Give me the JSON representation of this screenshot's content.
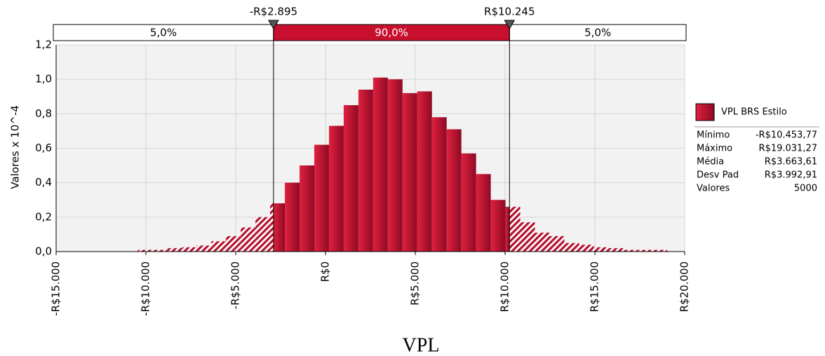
{
  "chart_data": {
    "type": "histogram",
    "xlabel": "VPL",
    "ylabel": "Valores x 10^-4",
    "bins": [
      -10453.77,
      -9634.74,
      -8815.71,
      -7996.68,
      -7177.65,
      -6358.63,
      -5539.6,
      -4720.57,
      -3901.54,
      -3082.51,
      -2263.48,
      -1444.45,
      -625.42,
      193.61,
      1012.63,
      1831.66,
      2650.69,
      3469.72,
      4288.75,
      5107.78,
      5926.81,
      6745.84,
      7564.87,
      8383.9,
      9202.92,
      10021.95,
      10840.98,
      11660.01,
      12479.04,
      13298.07,
      14117.1,
      14936.13,
      15755.16,
      16574.19,
      17393.21,
      18212.24,
      19031.27
    ],
    "values": [
      0.01,
      0.01,
      0.02,
      0.025,
      0.035,
      0.06,
      0.09,
      0.14,
      0.2,
      0.28,
      0.4,
      0.5,
      0.62,
      0.73,
      0.85,
      0.94,
      1.01,
      1.0,
      0.92,
      0.93,
      0.78,
      0.71,
      0.57,
      0.45,
      0.3,
      0.26,
      0.17,
      0.11,
      0.09,
      0.05,
      0.04,
      0.025,
      0.02,
      0.01,
      0.01,
      0.01
    ],
    "color": "#c8102e",
    "xlim": [
      -15000,
      20000
    ],
    "ylim": [
      0,
      1.2
    ],
    "xticks": [
      {
        "value": -15000,
        "label": "-R$15.000"
      },
      {
        "value": -10000,
        "label": "-R$10.000"
      },
      {
        "value": -5000,
        "label": "-R$5.000"
      },
      {
        "value": 0,
        "label": "R$0"
      },
      {
        "value": 5000,
        "label": "R$5.000"
      },
      {
        "value": 10000,
        "label": "R$10.000"
      },
      {
        "value": 15000,
        "label": "R$15.000"
      },
      {
        "value": 20000,
        "label": "R$20.000"
      }
    ],
    "yticks": [
      {
        "value": 0,
        "label": "0,0"
      },
      {
        "value": 0.2,
        "label": "0,2"
      },
      {
        "value": 0.4,
        "label": "0,4"
      },
      {
        "value": 0.6,
        "label": "0,6"
      },
      {
        "value": 0.8,
        "label": "0,8"
      },
      {
        "value": 1.0,
        "label": "1,0"
      },
      {
        "value": 1.2,
        "label": "1,2"
      }
    ],
    "grid": true,
    "delimiters": [
      {
        "value": -2895,
        "label": "-R$2.895"
      },
      {
        "value": 10245,
        "label": "R$10.245"
      }
    ],
    "band_labels": [
      "5,0%",
      "90,0%",
      "5,0%"
    ],
    "legend": {
      "name": "VPL BRS Estilo",
      "stats": [
        [
          "Mínimo",
          "-R$10.453,77"
        ],
        [
          "Máximo",
          "R$19.031,27"
        ],
        [
          "Média",
          "R$3.663,61"
        ],
        [
          "Desv Pad",
          "R$3.992,91"
        ],
        [
          "Valores",
          "5000"
        ]
      ]
    }
  }
}
